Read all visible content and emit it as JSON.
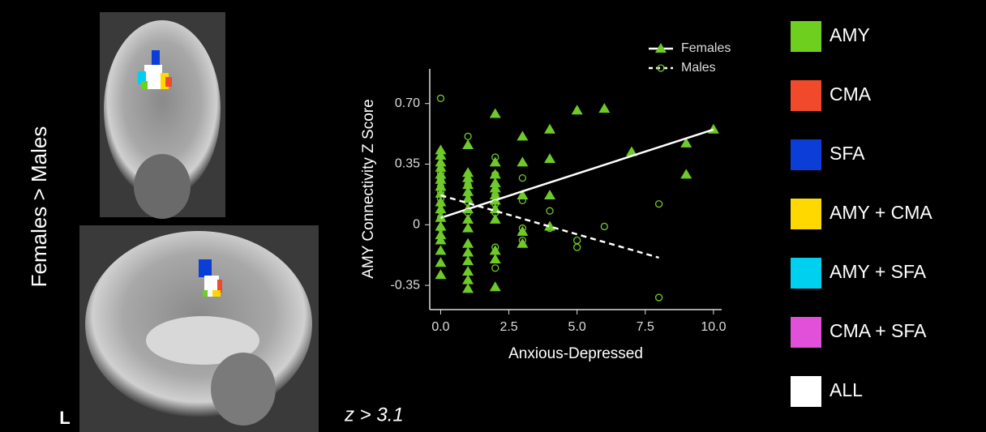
{
  "panel_label": "Females > Males",
  "orientation_label": "L",
  "threshold_label": "z > 3.1",
  "region_legend": [
    {
      "label": "AMY",
      "color": "#6fcf1f"
    },
    {
      "label": "CMA",
      "color": "#f04a2a"
    },
    {
      "label": "SFA",
      "color": "#0a3ed6"
    },
    {
      "label": "AMY + CMA",
      "color": "#ffd800"
    },
    {
      "label": "AMY + SFA",
      "color": "#00d0f0"
    },
    {
      "label": "CMA + SFA",
      "color": "#e050d8"
    },
    {
      "label": "ALL",
      "color": "#ffffff"
    }
  ],
  "chart_data": {
    "type": "scatter",
    "x_label": "Anxious-Depressed",
    "y_label": "AMY Connectivity Z Score",
    "xlim": [
      -0.4,
      10.3
    ],
    "ylim": [
      -0.49,
      0.9
    ],
    "xticks": [
      {
        "value": 0,
        "label": "0.0"
      },
      {
        "value": 2.5,
        "label": "2.5"
      },
      {
        "value": 5,
        "label": "5.0"
      },
      {
        "value": 7.5,
        "label": "7.5"
      },
      {
        "value": 10,
        "label": "10.0"
      }
    ],
    "yticks": [
      -0.35,
      0,
      0.35,
      {
        "value": 0.7,
        "label": "0.70"
      }
    ],
    "legend": "top-right",
    "series": [
      {
        "name": "Females",
        "color": "#6fc92a",
        "marker": "triangle",
        "x": [
          0,
          0,
          0,
          0,
          0,
          0,
          0,
          0,
          0,
          0,
          0,
          0,
          0,
          0,
          0,
          0,
          0,
          1,
          1,
          1,
          1,
          1,
          1,
          1,
          1,
          1,
          1,
          1,
          1,
          1,
          1,
          1,
          2,
          2,
          2,
          2,
          2,
          2,
          2,
          2,
          2,
          2,
          2,
          2,
          3,
          3,
          3,
          3,
          3,
          4,
          4,
          4,
          4,
          5,
          6,
          7,
          9,
          9,
          10
        ],
        "values": [
          0.43,
          0.4,
          0.36,
          0.33,
          0.29,
          0.26,
          0.22,
          0.18,
          0.13,
          0.09,
          0.04,
          -0.01,
          -0.06,
          -0.09,
          -0.15,
          -0.22,
          -0.29,
          0.46,
          0.3,
          0.27,
          0.23,
          0.19,
          0.15,
          0.09,
          0.03,
          -0.02,
          -0.11,
          -0.16,
          -0.21,
          -0.27,
          -0.32,
          -0.37,
          0.64,
          0.36,
          0.29,
          0.24,
          0.21,
          0.17,
          0.14,
          0.09,
          0.03,
          -0.15,
          -0.2,
          -0.36,
          0.51,
          0.36,
          0.17,
          -0.04,
          -0.11,
          0.55,
          0.38,
          0.17,
          -0.01,
          0.66,
          0.67,
          0.42,
          0.47,
          0.29,
          0.55
        ],
        "fit": {
          "x": [
            0,
            10
          ],
          "values": [
            0.04,
            0.55
          ],
          "color": "#ffffff",
          "dash": false
        }
      },
      {
        "name": "Males",
        "color": "#6fc92a",
        "marker": "circle",
        "x": [
          0,
          0,
          0,
          0,
          0,
          0,
          0,
          0,
          0,
          0,
          1,
          1,
          1,
          1,
          1,
          1,
          1,
          2,
          2,
          2,
          2,
          2,
          2,
          2,
          2,
          3,
          3,
          3,
          3,
          4,
          4,
          5,
          5,
          6,
          8,
          8
        ],
        "values": [
          0.73,
          0.3,
          0.26,
          0.22,
          0.19,
          0.15,
          0.12,
          0.08,
          0.04,
          -0.02,
          0.51,
          0.29,
          0.26,
          0.23,
          0.18,
          0.13,
          0.07,
          0.39,
          0.29,
          0.23,
          0.17,
          0.12,
          0.07,
          -0.13,
          -0.25,
          0.27,
          0.14,
          -0.02,
          -0.09,
          0.08,
          -0.02,
          -0.09,
          -0.13,
          -0.01,
          0.12,
          -0.42
        ],
        "fit": {
          "x": [
            0,
            8
          ],
          "values": [
            0.17,
            -0.19
          ],
          "color": "#ffffff",
          "dash": true
        }
      }
    ]
  }
}
